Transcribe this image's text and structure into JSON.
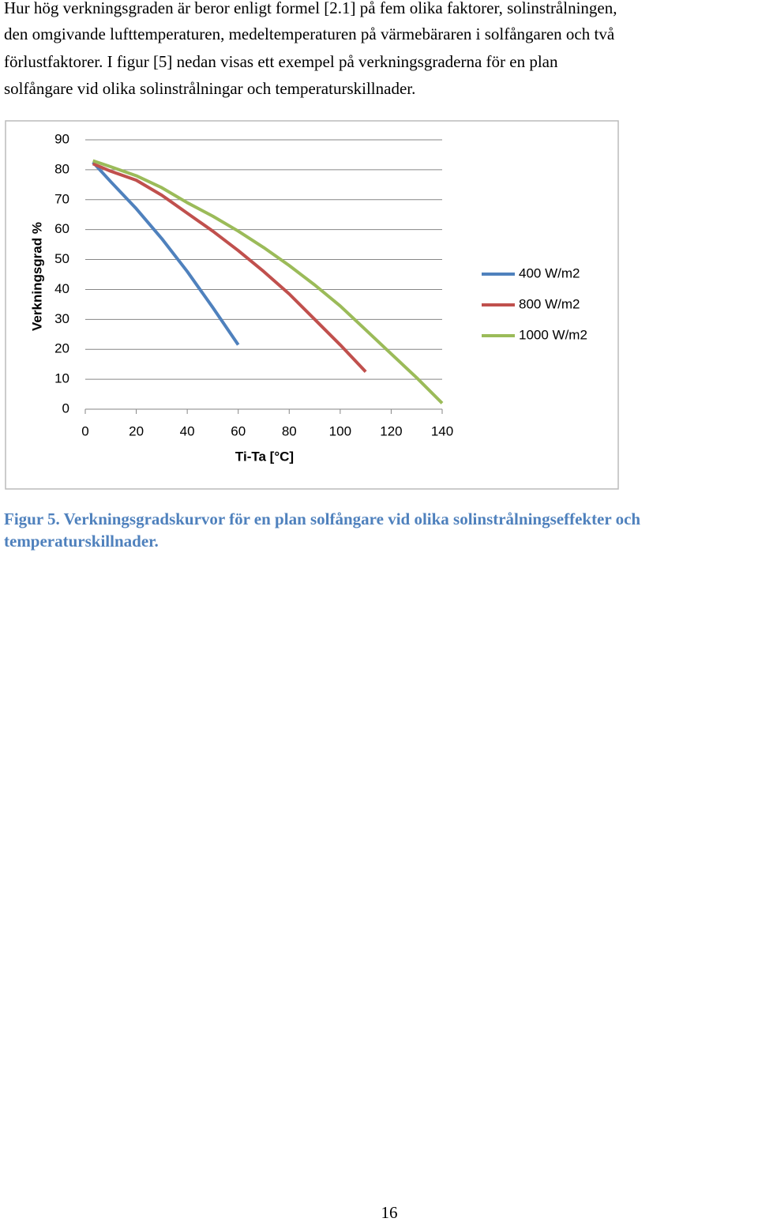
{
  "paragraph": [
    "Hur hög verkningsgraden är beror enligt formel [2.1] på fem olika faktorer, solinstrålningen,",
    "den omgivande lufttemperaturen, medeltemperaturen på värmebäraren i solfångaren och två",
    "förlustfaktorer. I figur [5] nedan visas ett exempel på verkningsgraderna för en plan",
    "solfångare vid olika solinstrålningar och temperaturskillnader."
  ],
  "chart_data": {
    "type": "line",
    "xlabel": "Ti-Ta [°C]",
    "ylabel": "Verkningsgrad %",
    "x": [
      3,
      10,
      20,
      30,
      40,
      50,
      60,
      70,
      80,
      90,
      100,
      110,
      120,
      130,
      140
    ],
    "series": [
      {
        "name": "400 W/m2",
        "color": "#4f81bd",
        "values": [
          82.5,
          76,
          67,
          57,
          46,
          34,
          21.5,
          null,
          null,
          null,
          null,
          null,
          null,
          null,
          null
        ]
      },
      {
        "name": "800 W/m2",
        "color": "#c0504d",
        "values": [
          82,
          79.5,
          76.5,
          71.5,
          65.5,
          59.5,
          53,
          46,
          38.5,
          30,
          21.5,
          12.5,
          null,
          null,
          null
        ]
      },
      {
        "name": "1000 W/m2",
        "color": "#9bbb59",
        "values": [
          83,
          81,
          78,
          74,
          69,
          64.5,
          59.5,
          54,
          48,
          41.5,
          34.5,
          26.5,
          18.5,
          10.5,
          2
        ]
      }
    ],
    "xlim": [
      0,
      140
    ],
    "xticks": [
      0,
      20,
      40,
      60,
      80,
      100,
      120,
      140
    ],
    "ylim": [
      0,
      90
    ],
    "yticks": [
      0,
      10,
      20,
      30,
      40,
      50,
      60,
      70,
      80,
      90
    ],
    "grid": true,
    "legend": "right"
  },
  "caption": [
    "Figur 5. Verkningsgradskurvor för en plan solfångare vid olika solinstrålningseffekter och",
    "temperaturskillnader."
  ],
  "page_number": "16"
}
